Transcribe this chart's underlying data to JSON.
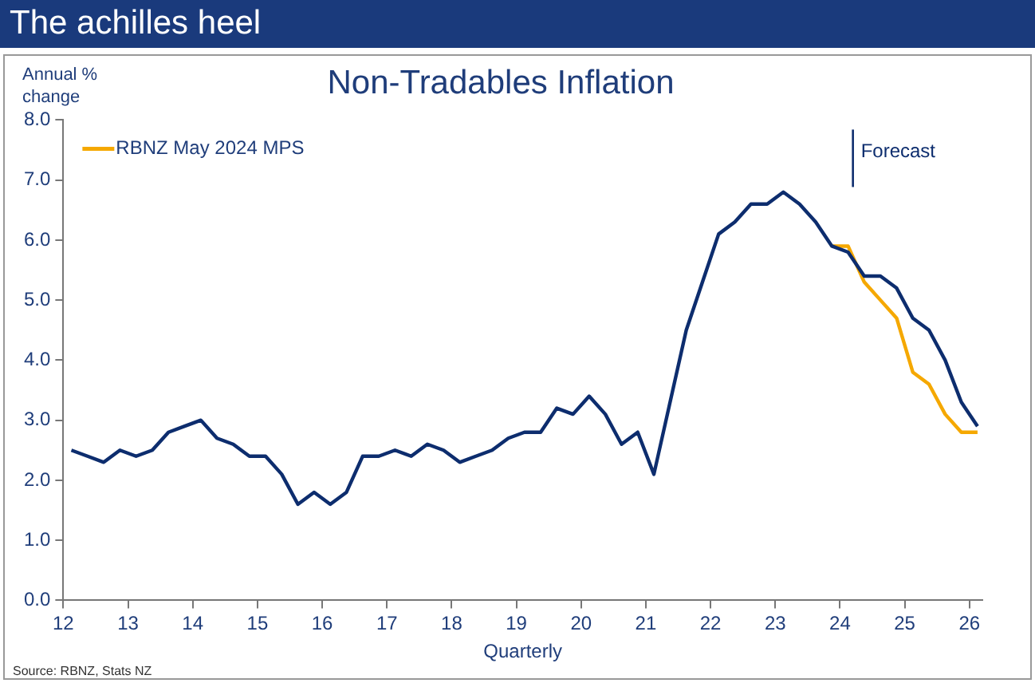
{
  "chart_data": {
    "type": "line",
    "title": "Non-Tradables Inflation",
    "xlabel": "Quarterly",
    "ylabel": "Annual %\nchange",
    "annotations": [
      "The achilles heel",
      "Source: RBNZ, Stats NZ"
    ],
    "x": [
      12.125,
      12.375,
      12.625,
      12.875,
      13.125,
      13.375,
      13.625,
      13.875,
      14.125,
      14.375,
      14.625,
      14.875,
      15.125,
      15.375,
      15.625,
      15.875,
      16.125,
      16.375,
      16.625,
      16.875,
      17.125,
      17.375,
      17.625,
      17.875,
      18.125,
      18.375,
      18.625,
      18.875,
      19.125,
      19.375,
      19.625,
      19.875,
      20.125,
      20.375,
      20.625,
      20.875,
      21.125,
      21.375,
      21.625,
      21.875,
      22.125,
      22.375,
      22.625,
      22.875,
      23.125,
      23.375,
      23.625,
      23.875,
      24.125,
      24.375,
      24.625,
      24.875,
      25.125,
      25.375,
      25.625,
      25.875,
      26.125
    ],
    "series": [
      {
        "name": "RBNZ May 2024 MPS",
        "color": "#f5a800",
        "values": [
          null,
          null,
          null,
          null,
          null,
          null,
          null,
          null,
          null,
          null,
          null,
          null,
          null,
          null,
          null,
          null,
          null,
          null,
          null,
          null,
          null,
          null,
          null,
          null,
          null,
          null,
          null,
          null,
          null,
          null,
          null,
          null,
          null,
          null,
          null,
          null,
          null,
          null,
          null,
          null,
          null,
          null,
          null,
          null,
          null,
          null,
          null,
          5.9,
          5.9,
          5.3,
          5.0,
          4.7,
          3.8,
          3.6,
          3.1,
          2.8,
          2.8
        ]
      },
      {
        "color": "#0d2d6e",
        "values": [
          2.5,
          2.4,
          2.3,
          2.5,
          2.4,
          2.5,
          2.8,
          2.9,
          3.0,
          2.7,
          2.6,
          2.4,
          2.4,
          2.1,
          1.6,
          1.8,
          1.6,
          1.8,
          2.4,
          2.4,
          2.5,
          2.4,
          2.6,
          2.5,
          2.3,
          2.4,
          2.5,
          2.7,
          2.8,
          2.8,
          3.2,
          3.1,
          3.4,
          3.1,
          2.6,
          2.8,
          2.1,
          3.3,
          4.5,
          5.3,
          6.1,
          6.3,
          6.6,
          6.6,
          6.8,
          6.6,
          6.3,
          5.9,
          5.8,
          5.4,
          5.4,
          5.2,
          4.7,
          4.5,
          4.0,
          3.3,
          2.9
        ]
      }
    ],
    "xlim": [
      12,
      26.2
    ],
    "xticks": [
      12,
      13,
      14,
      15,
      16,
      17,
      18,
      19,
      20,
      21,
      22,
      23,
      24,
      25,
      26
    ],
    "ylim": [
      0,
      8
    ],
    "yticks": [
      {
        "value": 0,
        "label": "0.0"
      },
      {
        "value": 1,
        "label": "1.0"
      },
      {
        "value": 2,
        "label": "2.0"
      },
      {
        "value": 3,
        "label": "3.0"
      },
      {
        "value": 4,
        "label": "4.0"
      },
      {
        "value": 5,
        "label": "5.0"
      },
      {
        "value": 6,
        "label": "6.0"
      },
      {
        "value": 7,
        "label": "7.0"
      },
      {
        "value": 8,
        "label": "8.0"
      }
    ],
    "ref_lines": [
      {
        "axis": "x",
        "value": 24.2,
        "label": "Forecast",
        "color": "#0d2d6e"
      }
    ],
    "grid": false,
    "legend": "top left",
    "marker": "none",
    "line_style": "solid"
  }
}
